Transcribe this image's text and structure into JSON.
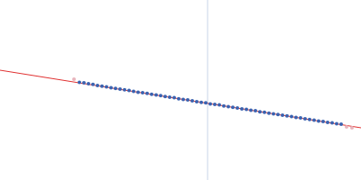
{
  "chart_data": {
    "type": "scatter",
    "xlim": [
      0,
      400
    ],
    "ylim": [
      0,
      200
    ],
    "xticks": [],
    "yticks": [],
    "tick_labels": false,
    "grid": false,
    "series": [
      {
        "type": "line",
        "color": "#c8d4e8",
        "x": [
          230,
          230
        ],
        "values": [
          0,
          200
        ]
      },
      {
        "type": "line",
        "color": "#e03030",
        "x": [
          0,
          400
        ],
        "values": [
          122,
          58
        ]
      },
      {
        "type": "scatter",
        "color": "#e8b4bc",
        "marker": "circle",
        "x": [
          82,
          384,
          390
        ],
        "values": [
          112,
          59,
          58
        ]
      },
      {
        "type": "scatter",
        "color": "#3a62b0",
        "marker": "circle",
        "x": [
          88,
          93,
          98,
          103,
          108,
          113,
          118,
          123,
          128,
          133,
          138,
          143,
          148,
          153,
          158,
          163,
          168,
          173,
          178,
          183,
          188,
          193,
          198,
          203,
          208,
          213,
          218,
          223,
          228,
          233,
          238,
          243,
          248,
          253,
          258,
          263,
          268,
          273,
          278,
          283,
          288,
          293,
          298,
          303,
          308,
          313,
          318,
          323,
          328,
          333,
          338,
          343,
          348,
          353,
          358,
          363,
          368,
          373,
          378
        ],
        "values": [
          108.5,
          108.0,
          107.0,
          106.2,
          105.0,
          104.3,
          103.5,
          102.6,
          101.8,
          100.9,
          100.2,
          99.5,
          98.6,
          97.4,
          96.9,
          96.3,
          95.2,
          94.6,
          93.8,
          92.7,
          92.1,
          91.4,
          90.3,
          89.6,
          88.9,
          88.0,
          87.1,
          86.3,
          85.7,
          84.6,
          84.0,
          83.4,
          82.3,
          81.5,
          80.8,
          80.0,
          79.1,
          78.4,
          77.6,
          76.9,
          75.8,
          75.3,
          74.2,
          73.5,
          72.8,
          71.9,
          71.3,
          70.4,
          69.6,
          68.9,
          67.9,
          67.2,
          66.5,
          65.6,
          64.9,
          64.1,
          63.4,
          62.6,
          61.9
        ]
      }
    ]
  }
}
